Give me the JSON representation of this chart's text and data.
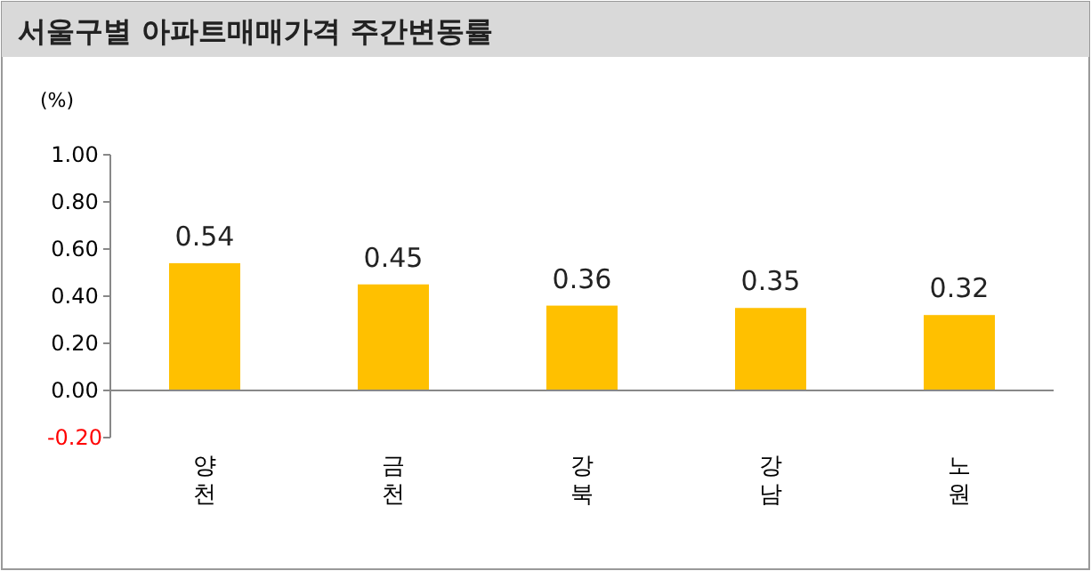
{
  "chart_data": {
    "type": "bar",
    "title": "서울구별 아파트매매가격 주간변동률",
    "ylabel": "(%)",
    "categories": [
      "양천",
      "금천",
      "강북",
      "강남",
      "노원"
    ],
    "values": [
      0.54,
      0.45,
      0.36,
      0.35,
      0.32
    ],
    "color": "#ffc000",
    "ylim": [
      -0.2,
      1.0
    ],
    "yticks": [
      {
        "value": -0.2,
        "label": "-0.20"
      },
      {
        "value": 0,
        "label": "0.00"
      },
      {
        "value": 0.2,
        "label": "0.20"
      },
      {
        "value": 0.4,
        "label": "0.40"
      },
      {
        "value": 0.6,
        "label": "0.60"
      },
      {
        "value": 0.8,
        "label": "0.80"
      },
      {
        "value": 1.0,
        "label": "1.00"
      }
    ],
    "ref_lines": [
      {
        "axis": "y",
        "value": 0,
        "color": "#888888"
      }
    ],
    "data_labels": true,
    "grid": false
  }
}
